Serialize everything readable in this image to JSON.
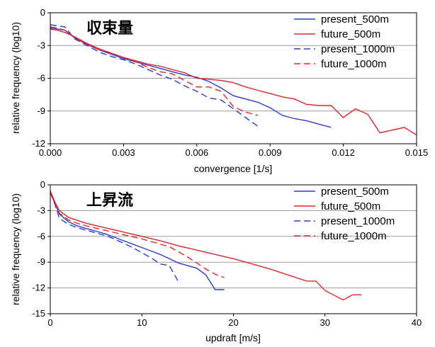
{
  "colors": {
    "blue": "#2a3bd6",
    "red": "#e0252a",
    "grid": "#9a9a9a"
  },
  "chart_data": [
    {
      "type": "line",
      "annotation": "収束量",
      "xlabel": "convergence [1/s]",
      "ylabel": "relative frequency (log10)",
      "xlim": [
        0,
        0.015
      ],
      "ylim": [
        -12,
        0
      ],
      "xticks": [
        0,
        0.003,
        0.006,
        0.009,
        0.012,
        0.015
      ],
      "xtick_labels": [
        "0.000",
        "0.003",
        "0.006",
        "0.009",
        "0.012",
        "0.015"
      ],
      "yticks": [
        0,
        -3,
        -6,
        -9,
        -12
      ],
      "ytick_labels": [
        "0",
        "-3",
        "-6",
        "-9",
        "-12"
      ],
      "grid": true,
      "legend": "top-right",
      "series": [
        {
          "name": "present_500m",
          "color": "blue",
          "dash": false,
          "x": [
            0,
            0.0003,
            0.0006,
            0.001,
            0.0015,
            0.002,
            0.0025,
            0.003,
            0.0035,
            0.004,
            0.0045,
            0.005,
            0.0055,
            0.006,
            0.0065,
            0.007,
            0.0075,
            0.008,
            0.0085,
            0.009,
            0.0095,
            0.01,
            0.0105,
            0.011,
            0.0115
          ],
          "y": [
            -1.4,
            -1.5,
            -1.6,
            -2.3,
            -2.9,
            -3.4,
            -3.8,
            -4.2,
            -4.5,
            -4.8,
            -5.1,
            -5.4,
            -5.7,
            -5.9,
            -6.3,
            -6.9,
            -7.6,
            -7.9,
            -8.2,
            -8.7,
            -9.4,
            -9.7,
            -9.9,
            -10.2,
            -10.5
          ]
        },
        {
          "name": "future_500m",
          "color": "red",
          "dash": false,
          "x": [
            0,
            0.0003,
            0.0006,
            0.001,
            0.0015,
            0.002,
            0.0025,
            0.003,
            0.0035,
            0.004,
            0.0045,
            0.005,
            0.0055,
            0.006,
            0.0065,
            0.007,
            0.0075,
            0.008,
            0.0085,
            0.009,
            0.0095,
            0.01,
            0.0105,
            0.011,
            0.0115,
            0.012,
            0.0125,
            0.013,
            0.0135,
            0.0145,
            0.015
          ],
          "y": [
            -1.5,
            -1.6,
            -1.8,
            -2.2,
            -2.8,
            -3.3,
            -3.7,
            -4.1,
            -4.4,
            -4.7,
            -4.9,
            -5.2,
            -5.5,
            -6.0,
            -6.1,
            -6.2,
            -6.4,
            -6.8,
            -7.1,
            -7.4,
            -7.7,
            -7.9,
            -8.4,
            -8.5,
            -8.5,
            -9.6,
            -8.8,
            -9.3,
            -11.0,
            -10.5,
            -11.2
          ]
        },
        {
          "name": "present_1000m",
          "color": "blue",
          "dash": true,
          "x": [
            0,
            0.0003,
            0.0006,
            0.001,
            0.0015,
            0.002,
            0.0025,
            0.003,
            0.0035,
            0.004,
            0.0045,
            0.005,
            0.0055,
            0.006,
            0.0065,
            0.007,
            0.0075,
            0.008,
            0.0085
          ],
          "y": [
            -1.1,
            -1.2,
            -1.3,
            -2.4,
            -3.0,
            -3.6,
            -4.0,
            -4.3,
            -4.7,
            -5.2,
            -5.7,
            -6.1,
            -6.7,
            -7.2,
            -7.8,
            -8.0,
            -8.8,
            -9.6,
            -10.4
          ]
        },
        {
          "name": "future_1000m",
          "color": "red",
          "dash": true,
          "x": [
            0,
            0.0003,
            0.0006,
            0.001,
            0.0015,
            0.002,
            0.0025,
            0.003,
            0.0035,
            0.004,
            0.0045,
            0.005,
            0.0055,
            0.006,
            0.0065,
            0.007,
            0.0075,
            0.008,
            0.0085
          ],
          "y": [
            -1.3,
            -1.4,
            -1.6,
            -2.3,
            -2.9,
            -3.4,
            -3.7,
            -4.1,
            -4.5,
            -5.0,
            -5.4,
            -5.6,
            -6.2,
            -6.8,
            -6.8,
            -7.2,
            -8.6,
            -9.1,
            -9.4
          ]
        }
      ]
    },
    {
      "type": "line",
      "annotation": "上昇流",
      "xlabel": "updraft [m/s]",
      "ylabel": "relative frequency (log10)",
      "xlim": [
        0,
        40
      ],
      "ylim": [
        -15,
        0
      ],
      "xticks": [
        0,
        10,
        20,
        30,
        40
      ],
      "xtick_labels": [
        "0",
        "10",
        "20",
        "30",
        "40"
      ],
      "yticks": [
        0,
        -3,
        -6,
        -9,
        -12,
        -15
      ],
      "ytick_labels": [
        "0",
        "-3",
        "-6",
        "-9",
        "-12",
        "-15"
      ],
      "grid": true,
      "legend": "top-right",
      "series": [
        {
          "name": "present_500m",
          "color": "blue",
          "dash": false,
          "x": [
            0,
            0.5,
            1,
            2,
            3,
            4,
            5,
            6,
            7,
            8,
            9,
            10,
            11,
            12,
            13,
            14,
            15,
            16,
            17,
            18,
            19
          ],
          "y": [
            -0.8,
            -2.2,
            -3.4,
            -4.3,
            -4.8,
            -5.1,
            -5.4,
            -5.7,
            -6.1,
            -6.5,
            -6.9,
            -7.3,
            -7.7,
            -8.1,
            -8.6,
            -9.1,
            -9.4,
            -9.7,
            -10.5,
            -12.2,
            -12.2
          ]
        },
        {
          "name": "future_500m",
          "color": "red",
          "dash": false,
          "x": [
            0,
            0.5,
            1,
            2,
            4,
            6,
            8,
            10,
            12,
            14,
            16,
            18,
            20,
            22,
            24,
            26,
            28,
            29,
            30,
            32,
            33,
            34
          ],
          "y": [
            -0.7,
            -2.0,
            -3.0,
            -3.8,
            -4.5,
            -5.0,
            -5.5,
            -6.0,
            -6.5,
            -7.1,
            -7.6,
            -8.1,
            -8.6,
            -9.2,
            -9.8,
            -10.5,
            -11.2,
            -11.2,
            -12.3,
            -13.4,
            -12.8,
            -12.8
          ]
        },
        {
          "name": "present_1000m",
          "color": "blue",
          "dash": true,
          "x": [
            0,
            0.5,
            1,
            2,
            3,
            4,
            5,
            6,
            7,
            8,
            9,
            10,
            11,
            12,
            13,
            14
          ],
          "y": [
            -0.9,
            -2.3,
            -3.9,
            -4.6,
            -5.0,
            -5.3,
            -5.6,
            -5.9,
            -6.3,
            -6.8,
            -7.3,
            -7.9,
            -8.5,
            -9.2,
            -9.4,
            -11.3
          ]
        },
        {
          "name": "future_1000m",
          "color": "red",
          "dash": true,
          "x": [
            0,
            0.5,
            1,
            2,
            3,
            4,
            6,
            8,
            10,
            12,
            13,
            14,
            15,
            16,
            17,
            18,
            19
          ],
          "y": [
            -0.9,
            -2.2,
            -3.3,
            -4.1,
            -4.5,
            -4.8,
            -5.3,
            -5.8,
            -6.3,
            -6.9,
            -7.2,
            -7.8,
            -8.4,
            -9.1,
            -9.8,
            -10.4,
            -10.8
          ]
        }
      ]
    }
  ]
}
